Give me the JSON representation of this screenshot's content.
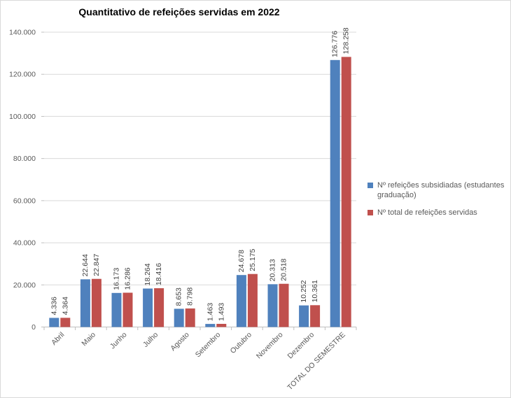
{
  "chart_data": {
    "type": "bar",
    "title": "Quantitativo de refeições servidas em 2022",
    "categories": [
      "Abril",
      "Maio",
      "Junho",
      "Julho",
      "Agosto",
      "Setembro",
      "Outubro",
      "Novembro",
      "Dezembro",
      "TOTAL DO SEMESTRE"
    ],
    "series": [
      {
        "name": "Nº refeições subsidiadas (estudantes graduação)",
        "color": "#4F81BD",
        "values": [
          4336,
          22644,
          16173,
          18264,
          8653,
          1463,
          24678,
          20313,
          10252,
          126776
        ]
      },
      {
        "name": "Nº total de refeições servidas",
        "color": "#C0504D",
        "values": [
          4364,
          22847,
          16286,
          18416,
          8798,
          1493,
          25175,
          20518,
          10361,
          128258
        ]
      }
    ],
    "xlabel": "",
    "ylabel": "",
    "ylim": [
      0,
      140000
    ],
    "ytick_interval": 20000,
    "ytick_labels": [
      "0",
      "20.000",
      "40.000",
      "60.000",
      "80.000",
      "100.000",
      "120.000",
      "140.000"
    ],
    "grid": true,
    "legend_position": "right",
    "number_format": "thousands-dot",
    "data_labels_rotation": -90,
    "category_labels_rotation": -45
  },
  "colors": {
    "series_blue": "#4F81BD",
    "series_red": "#C0504D",
    "gridline": "#D9D9D9",
    "axis": "#BFBFBF",
    "axis_label": "#595959",
    "data_label": "#404040",
    "title": "#000000",
    "background": "#FFFFFF",
    "border": "#D9D9D9"
  }
}
